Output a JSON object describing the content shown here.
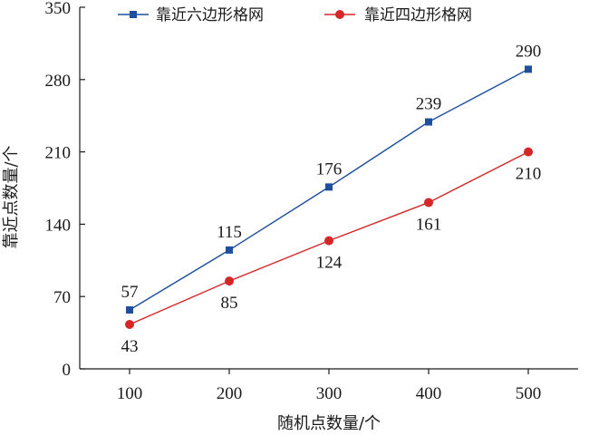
{
  "chart_data": {
    "type": "line",
    "xlabel": "随机点数量/个",
    "ylabel": "靠近点数量/个",
    "x": [
      100,
      200,
      300,
      400,
      500
    ],
    "xticks": [
      "100",
      "200",
      "300",
      "400",
      "500"
    ],
    "yticks": [
      "0",
      "70",
      "140",
      "210",
      "280",
      "350"
    ],
    "ylim": [
      0,
      350
    ],
    "grid": false,
    "legend_position": "top",
    "series": [
      {
        "name": "靠近六边形格网",
        "values": [
          57,
          115,
          176,
          239,
          290
        ],
        "labels": [
          "57",
          "115",
          "176",
          "239",
          "290"
        ],
        "color": "#1f4e9c",
        "marker": "square",
        "label_position": "above"
      },
      {
        "name": "靠近四边形格网",
        "values": [
          43,
          85,
          124,
          161,
          210
        ],
        "labels": [
          "43",
          "85",
          "124",
          "161",
          "210"
        ],
        "color": "#d62728",
        "marker": "circle",
        "label_position": "below"
      }
    ]
  }
}
